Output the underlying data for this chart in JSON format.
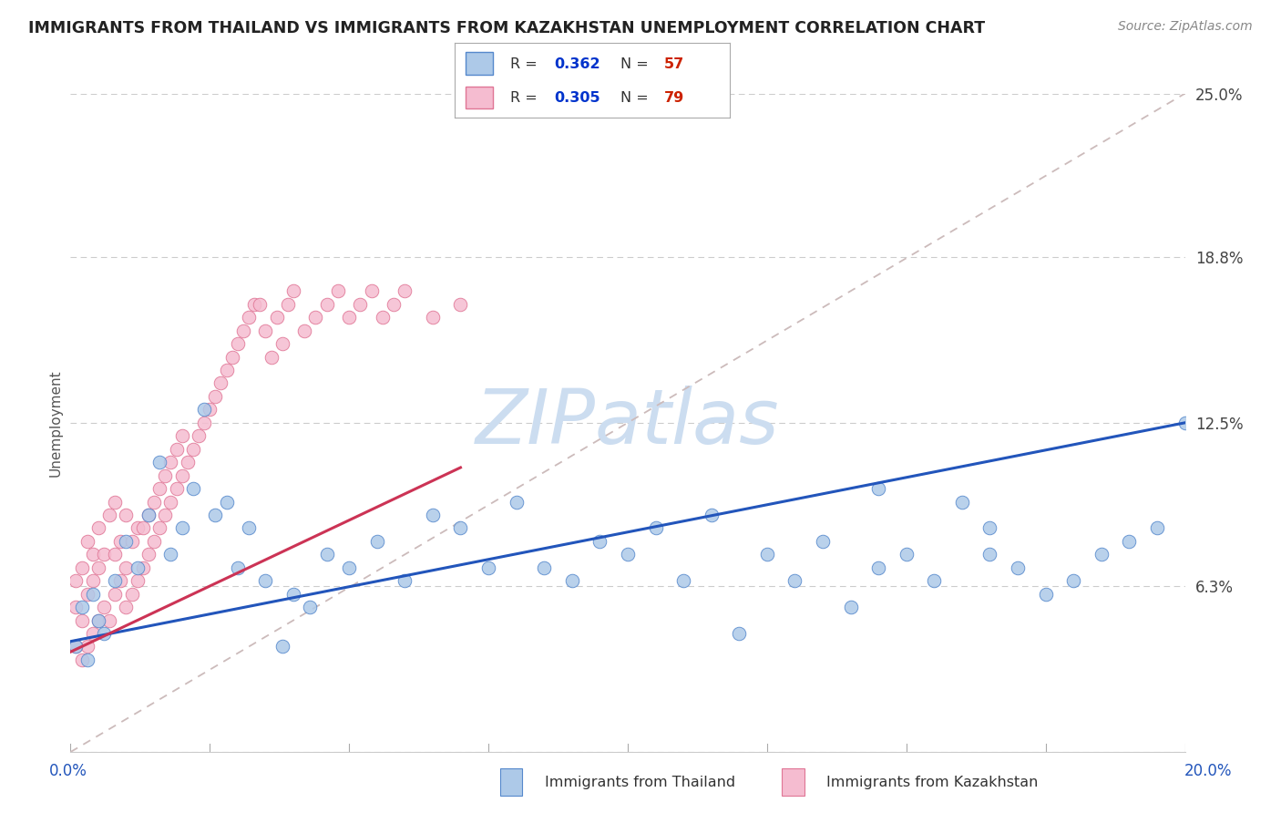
{
  "title": "IMMIGRANTS FROM THAILAND VS IMMIGRANTS FROM KAZAKHSTAN UNEMPLOYMENT CORRELATION CHART",
  "source": "Source: ZipAtlas.com",
  "R_thailand": 0.362,
  "N_thailand": 57,
  "R_kazakhstan": 0.305,
  "N_kazakhstan": 79,
  "thailand_color": "#adc9e8",
  "thailand_edge": "#5588cc",
  "kazakhstan_color": "#f5bcd0",
  "kazakhstan_edge": "#e07595",
  "trend_thailand_color": "#2255bb",
  "trend_kazakhstan_color": "#cc3355",
  "dashed_line_color": "#ccbbbb",
  "legend_R_color": "#0033cc",
  "legend_N_color": "#cc2200",
  "watermark_color": "#ccddf0",
  "xlim": [
    0.0,
    0.2
  ],
  "ylim": [
    0.0,
    0.25
  ],
  "ytick_vals": [
    0.0,
    0.063,
    0.125,
    0.188,
    0.25
  ],
  "ytick_labels": [
    "",
    "6.3%",
    "12.5%",
    "18.8%",
    "25.0%"
  ],
  "thai_x": [
    0.001,
    0.002,
    0.003,
    0.004,
    0.005,
    0.006,
    0.008,
    0.01,
    0.012,
    0.014,
    0.016,
    0.018,
    0.02,
    0.022,
    0.024,
    0.026,
    0.028,
    0.03,
    0.032,
    0.035,
    0.038,
    0.04,
    0.043,
    0.046,
    0.05,
    0.055,
    0.06,
    0.065,
    0.07,
    0.075,
    0.08,
    0.085,
    0.09,
    0.095,
    0.1,
    0.105,
    0.11,
    0.115,
    0.12,
    0.125,
    0.13,
    0.135,
    0.14,
    0.145,
    0.15,
    0.155,
    0.16,
    0.165,
    0.17,
    0.175,
    0.18,
    0.185,
    0.19,
    0.195,
    0.2,
    0.145,
    0.165
  ],
  "thai_y": [
    0.04,
    0.055,
    0.035,
    0.06,
    0.05,
    0.045,
    0.065,
    0.08,
    0.07,
    0.09,
    0.11,
    0.075,
    0.085,
    0.1,
    0.13,
    0.09,
    0.095,
    0.07,
    0.085,
    0.065,
    0.04,
    0.06,
    0.055,
    0.075,
    0.07,
    0.08,
    0.065,
    0.09,
    0.085,
    0.07,
    0.095,
    0.07,
    0.065,
    0.08,
    0.075,
    0.085,
    0.065,
    0.09,
    0.045,
    0.075,
    0.065,
    0.08,
    0.055,
    0.07,
    0.075,
    0.065,
    0.095,
    0.085,
    0.07,
    0.06,
    0.065,
    0.075,
    0.08,
    0.085,
    0.125,
    0.1,
    0.075
  ],
  "kaz_x": [
    0.001,
    0.001,
    0.001,
    0.002,
    0.002,
    0.002,
    0.003,
    0.003,
    0.003,
    0.004,
    0.004,
    0.004,
    0.005,
    0.005,
    0.005,
    0.006,
    0.006,
    0.007,
    0.007,
    0.008,
    0.008,
    0.008,
    0.009,
    0.009,
    0.01,
    0.01,
    0.01,
    0.011,
    0.011,
    0.012,
    0.012,
    0.013,
    0.013,
    0.014,
    0.014,
    0.015,
    0.015,
    0.016,
    0.016,
    0.017,
    0.017,
    0.018,
    0.018,
    0.019,
    0.019,
    0.02,
    0.02,
    0.021,
    0.022,
    0.023,
    0.024,
    0.025,
    0.026,
    0.027,
    0.028,
    0.029,
    0.03,
    0.031,
    0.032,
    0.033,
    0.034,
    0.035,
    0.036,
    0.037,
    0.038,
    0.039,
    0.04,
    0.042,
    0.044,
    0.046,
    0.048,
    0.05,
    0.052,
    0.054,
    0.056,
    0.058,
    0.06,
    0.065,
    0.07
  ],
  "kaz_y": [
    0.04,
    0.055,
    0.065,
    0.035,
    0.05,
    0.07,
    0.04,
    0.06,
    0.08,
    0.045,
    0.065,
    0.075,
    0.05,
    0.07,
    0.085,
    0.055,
    0.075,
    0.05,
    0.09,
    0.06,
    0.075,
    0.095,
    0.065,
    0.08,
    0.055,
    0.07,
    0.09,
    0.06,
    0.08,
    0.065,
    0.085,
    0.07,
    0.085,
    0.075,
    0.09,
    0.08,
    0.095,
    0.085,
    0.1,
    0.09,
    0.105,
    0.095,
    0.11,
    0.1,
    0.115,
    0.105,
    0.12,
    0.11,
    0.115,
    0.12,
    0.125,
    0.13,
    0.135,
    0.14,
    0.145,
    0.15,
    0.155,
    0.16,
    0.165,
    0.17,
    0.17,
    0.16,
    0.15,
    0.165,
    0.155,
    0.17,
    0.175,
    0.16,
    0.165,
    0.17,
    0.175,
    0.165,
    0.17,
    0.175,
    0.165,
    0.17,
    0.175,
    0.165,
    0.17
  ],
  "trend_thai_x0": 0.0,
  "trend_thai_x1": 0.2,
  "trend_thai_y0": 0.042,
  "trend_thai_y1": 0.125,
  "trend_kaz_x0": 0.0,
  "trend_kaz_x1": 0.07,
  "trend_kaz_y0": 0.038,
  "trend_kaz_y1": 0.108
}
